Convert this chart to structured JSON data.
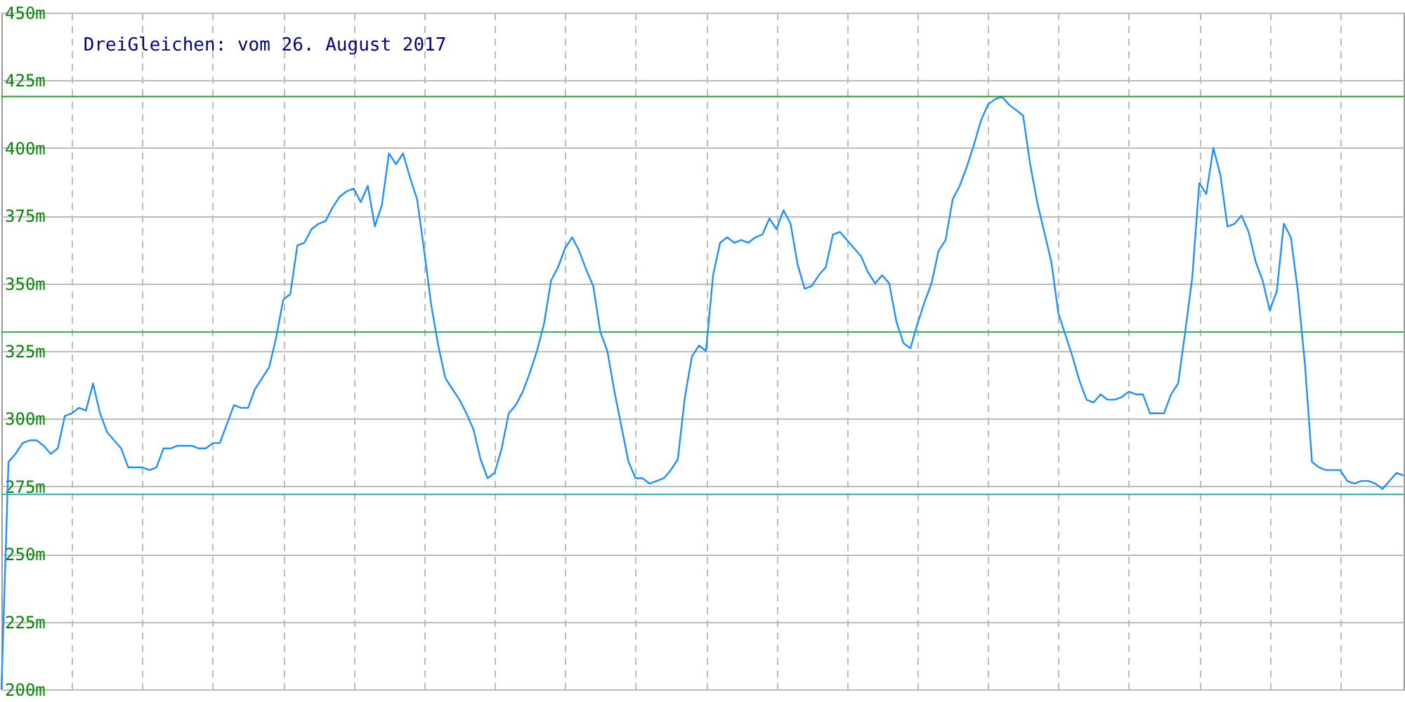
{
  "chart_data": {
    "type": "line",
    "title": "DreiGleichen: vom 26. August 2017",
    "categories": [
      null,
      null,
      null,
      null,
      null,
      null,
      null,
      null,
      null,
      null,
      null,
      null,
      null,
      null,
      null,
      null,
      null,
      null,
      null,
      null,
      null,
      null,
      null,
      null,
      null,
      null,
      null,
      null,
      null,
      null,
      null,
      null,
      null,
      null,
      null,
      null,
      null,
      null,
      null,
      null,
      null,
      null,
      null,
      null,
      null,
      null,
      null,
      null,
      null,
      null,
      null,
      null,
      null,
      null,
      null,
      null,
      null,
      null,
      null,
      null,
      null,
      null,
      null,
      null,
      null,
      null,
      null,
      null,
      null,
      null,
      null,
      null,
      null,
      null,
      null,
      null,
      null,
      null,
      null,
      null,
      null,
      null,
      null,
      null,
      null,
      null,
      null,
      null,
      null,
      null,
      null,
      null,
      null,
      null,
      null,
      null,
      null,
      null,
      null,
      null,
      null,
      null,
      null,
      null,
      null,
      null,
      null,
      null,
      null,
      null,
      null,
      null,
      null,
      null,
      null,
      null,
      null,
      null,
      null,
      null,
      null,
      null,
      null,
      null,
      null,
      null,
      null,
      null,
      null,
      null,
      null,
      null,
      null,
      null,
      null,
      null,
      null,
      null,
      null,
      null,
      null,
      null,
      null,
      null,
      null,
      null,
      null,
      null,
      null,
      null,
      null,
      null,
      null,
      null,
      null,
      null,
      null,
      null,
      null,
      null,
      null,
      null,
      null,
      null,
      null,
      null,
      null,
      null,
      null,
      null,
      null,
      null,
      null,
      null,
      null,
      null,
      null,
      null,
      null,
      null,
      null,
      null,
      null,
      null,
      null,
      null,
      null,
      null,
      null,
      null,
      null,
      null,
      null,
      null,
      null,
      null,
      null,
      null,
      null,
      null
    ],
    "series": [
      {
        "color": "#1e90ff",
        "values": [
          200,
          284,
          287,
          291,
          292,
          292,
          290,
          287,
          289,
          301,
          302,
          304,
          303,
          313,
          302,
          295,
          292,
          289,
          282,
          282,
          282,
          281,
          282,
          289,
          289,
          290,
          290,
          290,
          289,
          289,
          291,
          291,
          298,
          305,
          304,
          304,
          311,
          315,
          319,
          330,
          344,
          346,
          364,
          365,
          370,
          372,
          373,
          378,
          382,
          384,
          385,
          380,
          386,
          371,
          379,
          398,
          394,
          398,
          389,
          381,
          362,
          342,
          327,
          315,
          311,
          307,
          302,
          296,
          285,
          278,
          280,
          289,
          302,
          305,
          310,
          317,
          325,
          335,
          351,
          356,
          363,
          367,
          362,
          355,
          349,
          332,
          325,
          310,
          297,
          284,
          278,
          278,
          276,
          277,
          278,
          281,
          285,
          308,
          323,
          327,
          325,
          353,
          365,
          367,
          365,
          366,
          365,
          367,
          368,
          374,
          370,
          377,
          372,
          357,
          348,
          349,
          353,
          356,
          368,
          369,
          366,
          363,
          360,
          354,
          350,
          353,
          350,
          336,
          328,
          326,
          335,
          343,
          350,
          362,
          366,
          381,
          386,
          393,
          401,
          410,
          416,
          418,
          419,
          416,
          414,
          412,
          394,
          380,
          369,
          358,
          339,
          331,
          323,
          314,
          307,
          306,
          309,
          307,
          307,
          308,
          310,
          309,
          309,
          302,
          302,
          302,
          309,
          313,
          332,
          352,
          387,
          383,
          400,
          390,
          371,
          372,
          375,
          369,
          358,
          351,
          340,
          347,
          372,
          367,
          347,
          320,
          284,
          282,
          281,
          281,
          281,
          277,
          276,
          277,
          277,
          276,
          274,
          277,
          280,
          279
        ]
      }
    ],
    "ylim": [
      200,
      450
    ],
    "yticks": [
      {
        "value": 200,
        "label": "200m"
      },
      {
        "value": 225,
        "label": "225m"
      },
      {
        "value": 250,
        "label": "250m"
      },
      {
        "value": 275,
        "label": "275m"
      },
      {
        "value": 300,
        "label": "300m"
      },
      {
        "value": 325,
        "label": "325m"
      },
      {
        "value": 350,
        "label": "350m"
      },
      {
        "value": 375,
        "label": "375m"
      },
      {
        "value": 400,
        "label": "400m"
      },
      {
        "value": 425,
        "label": "425m"
      },
      {
        "value": 450,
        "label": "450m"
      }
    ],
    "grid": true,
    "tick_labels": "y",
    "ref_lines": [
      {
        "axis": "y",
        "value": 419,
        "color": "#1f9f1f"
      },
      {
        "axis": "y",
        "value": 332,
        "color": "#2db35e"
      },
      {
        "axis": "y",
        "value": 272,
        "color": "#1cb0a8"
      }
    ]
  }
}
